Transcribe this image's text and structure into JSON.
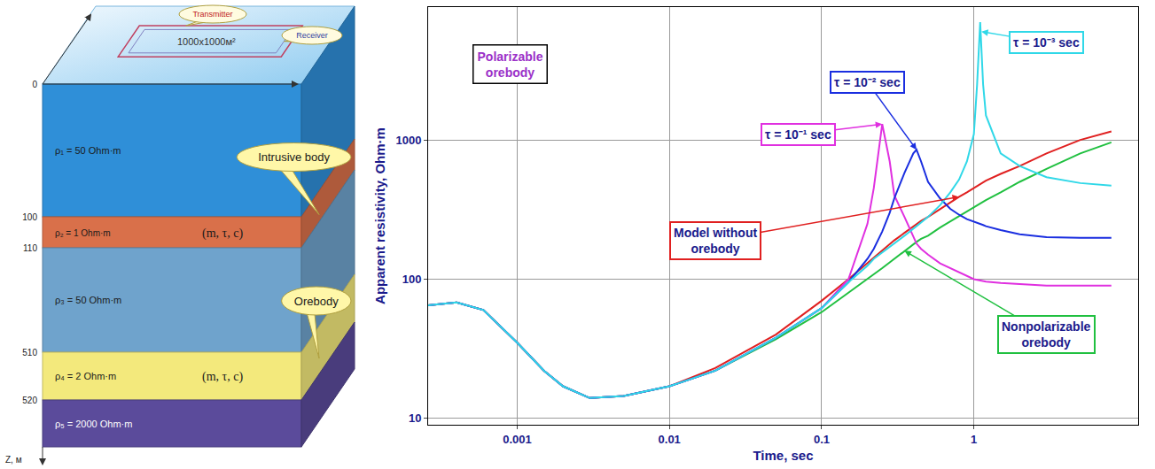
{
  "model": {
    "survey": {
      "transmitter": "Transmitter",
      "receiver": "Receiver",
      "loop": "1000x1000м²"
    },
    "depths": [
      0,
      100,
      110,
      510,
      520
    ],
    "z_label": "Z, м",
    "layers": [
      {
        "label": "ρ₁ = 50 Ohm·m",
        "color": "#2f8fd8"
      },
      {
        "label": "ρ₂ = 1 Ohm·m",
        "color": "#d9704a",
        "params": "(m, τ, c)",
        "callout": "Intrusive body"
      },
      {
        "label": "ρ₃ = 50 Ohm·m",
        "color": "#6fa3cc"
      },
      {
        "label": "ρ₄ = 2 Ohm·m",
        "color": "#f3e97c",
        "params": "(m, τ, c)",
        "callout": "Orebody"
      },
      {
        "label": "ρ₅ = 2000 Ohm·m",
        "color": "#5b4b9b"
      }
    ]
  },
  "chart_data": {
    "type": "line",
    "x_label": "Time, sec",
    "y_label": "Apparent resistivity, Ohm·m",
    "log": true,
    "grid": true,
    "xlim": [
      0.00026,
      12
    ],
    "ylim": [
      9,
      9000
    ],
    "xticks": [
      0.001,
      0.01,
      0.1,
      1
    ],
    "yticks": [
      10,
      100,
      1000
    ],
    "x": [
      0.00026,
      0.0004,
      0.0006,
      0.001,
      0.0015,
      0.002,
      0.003,
      0.005,
      0.01,
      0.02,
      0.05,
      0.1,
      0.15,
      0.2,
      0.22,
      0.25,
      0.28,
      0.3,
      0.35,
      0.4,
      0.42,
      0.45,
      0.5,
      0.6,
      0.7,
      0.8,
      0.9,
      1,
      1.05,
      1.1,
      1.15,
      1.2,
      1.5,
      2,
      3,
      5,
      8
    ],
    "series": [
      {
        "name": "Model without orebody",
        "color": "#e02020",
        "values": [
          65,
          68,
          60,
          35,
          22,
          17,
          14,
          14.5,
          17,
          23,
          40,
          70,
          100,
          130,
          142,
          160,
          178,
          190,
          215,
          240,
          250,
          262,
          280,
          320,
          355,
          390,
          420,
          450,
          465,
          480,
          495,
          510,
          570,
          650,
          800,
          1000,
          1150
        ],
        "label": {
          "x": 0.02,
          "y": 190,
          "arrow_x": 0.8,
          "arrow_y": 390
        }
      },
      {
        "name": "Nonpolarizable orebody",
        "color": "#20c040",
        "values": [
          65,
          68,
          60,
          35,
          22,
          17,
          14,
          14.5,
          17,
          22,
          37,
          58,
          80,
          100,
          108,
          120,
          132,
          140,
          160,
          178,
          185,
          195,
          205,
          235,
          260,
          285,
          310,
          330,
          340,
          350,
          360,
          370,
          420,
          500,
          620,
          800,
          960
        ],
        "label": {
          "x": 3,
          "y": 40,
          "arrow_x": 0.35,
          "arrow_y": 160
        }
      },
      {
        "name": "τ = 10⁻¹ sec",
        "color": "#e030e0",
        "values": [
          65,
          68,
          60,
          35,
          22,
          17,
          14,
          14.5,
          17,
          22,
          38,
          62,
          100,
          250,
          450,
          1300,
          700,
          400,
          280,
          200,
          180,
          165,
          150,
          130,
          120,
          112,
          106,
          100,
          99,
          98,
          97,
          96,
          94,
          92,
          90,
          90,
          90
        ],
        "label": {
          "x": 0.07,
          "y": 1100,
          "arrow_x": 0.25,
          "arrow_y": 1300
        }
      },
      {
        "name": "τ = 10⁻² sec",
        "color": "#1a2ee0",
        "values": [
          65,
          68,
          60,
          35,
          22,
          17,
          14,
          14.5,
          17,
          22,
          38,
          62,
          95,
          140,
          165,
          220,
          300,
          380,
          580,
          800,
          850,
          700,
          500,
          380,
          320,
          290,
          270,
          260,
          255,
          250,
          245,
          240,
          225,
          210,
          200,
          198,
          198
        ],
        "label": {
          "x": 0.2,
          "y": 2600,
          "arrow_x": 0.42,
          "arrow_y": 850
        }
      },
      {
        "name": "τ = 10⁻³ sec",
        "color": "#30d8e8",
        "values": [
          65,
          68,
          60,
          35,
          22,
          17,
          14,
          14.5,
          17,
          22,
          38,
          62,
          95,
          125,
          140,
          155,
          170,
          180,
          205,
          230,
          240,
          255,
          280,
          340,
          420,
          520,
          700,
          1100,
          2500,
          7000,
          2500,
          1500,
          800,
          650,
          540,
          490,
          470
        ],
        "label": {
          "x": 3,
          "y": 5000,
          "arrow_x": 1.12,
          "arrow_y": 6000
        }
      }
    ],
    "annotations": [
      {
        "text": "Polarizable orebody",
        "x": 0.0009,
        "y": 3500,
        "color": "#9b30c8"
      }
    ]
  }
}
